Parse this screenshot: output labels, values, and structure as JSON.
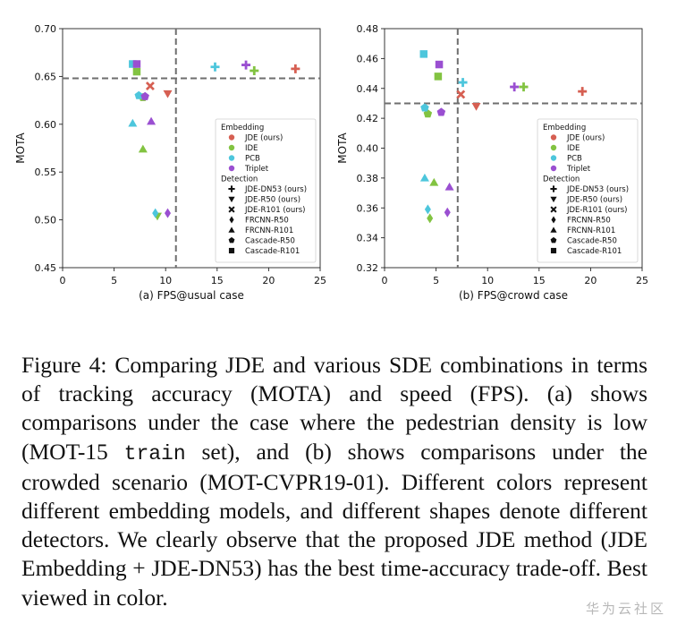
{
  "chart_data": [
    {
      "type": "scatter",
      "title": "",
      "xlabel": "(a) FPS@usual case",
      "ylabel": "MOTA",
      "xlim": [
        0,
        25
      ],
      "ylim": [
        0.45,
        0.7
      ],
      "xticks": [
        "0",
        "5",
        "10",
        "15",
        "20",
        "25"
      ],
      "yticks": [
        "0.45",
        "0.50",
        "0.55",
        "0.60",
        "0.65",
        "0.70"
      ],
      "grid": false,
      "reference_lines": {
        "vertical_x": 11.0,
        "horizontal_y": 0.648
      },
      "legend_placement": "lower-right",
      "points": [
        {
          "embedding": "JDE (ours)",
          "detection": "JDE-DN53 (ours)",
          "x": 22.6,
          "y": 0.658
        },
        {
          "embedding": "JDE (ours)",
          "detection": "JDE-R50 (ours)",
          "x": 10.2,
          "y": 0.632
        },
        {
          "embedding": "JDE (ours)",
          "detection": "JDE-R101 (ours)",
          "x": 8.5,
          "y": 0.64
        },
        {
          "embedding": "IDE",
          "detection": "JDE-DN53 (ours)",
          "x": 18.6,
          "y": 0.656
        },
        {
          "embedding": "IDE",
          "detection": "JDE-R50 (ours)",
          "x": 9.2,
          "y": 0.504
        },
        {
          "embedding": "IDE",
          "detection": "FRCNN-R101",
          "x": 7.8,
          "y": 0.574
        },
        {
          "embedding": "IDE",
          "detection": "Cascade-R50",
          "x": 7.8,
          "y": 0.628
        },
        {
          "embedding": "IDE",
          "detection": "Cascade-R101",
          "x": 7.2,
          "y": 0.655
        },
        {
          "embedding": "PCB",
          "detection": "JDE-DN53 (ours)",
          "x": 14.8,
          "y": 0.66
        },
        {
          "embedding": "PCB",
          "detection": "FRCNN-R50",
          "x": 9.0,
          "y": 0.507
        },
        {
          "embedding": "PCB",
          "detection": "FRCNN-R101",
          "x": 6.8,
          "y": 0.601
        },
        {
          "embedding": "PCB",
          "detection": "Cascade-R50",
          "x": 7.4,
          "y": 0.63
        },
        {
          "embedding": "PCB",
          "detection": "Cascade-R101",
          "x": 6.8,
          "y": 0.663
        },
        {
          "embedding": "Triplet",
          "detection": "JDE-DN53 (ours)",
          "x": 17.8,
          "y": 0.662
        },
        {
          "embedding": "Triplet",
          "detection": "FRCNN-R50",
          "x": 10.2,
          "y": 0.507
        },
        {
          "embedding": "Triplet",
          "detection": "FRCNN-R101",
          "x": 8.6,
          "y": 0.603
        },
        {
          "embedding": "Triplet",
          "detection": "Cascade-R50",
          "x": 8.0,
          "y": 0.629
        },
        {
          "embedding": "Triplet",
          "detection": "Cascade-R101",
          "x": 7.2,
          "y": 0.663
        }
      ]
    },
    {
      "type": "scatter",
      "title": "",
      "xlabel": "(b) FPS@crowd case",
      "ylabel": "MOTA",
      "xlim": [
        0,
        25
      ],
      "ylim": [
        0.32,
        0.48
      ],
      "xticks": [
        "0",
        "5",
        "10",
        "15",
        "20",
        "25"
      ],
      "yticks": [
        "0.32",
        "0.34",
        "0.36",
        "0.38",
        "0.40",
        "0.42",
        "0.44",
        "0.46",
        "0.48"
      ],
      "grid": false,
      "reference_lines": {
        "vertical_x": 7.1,
        "horizontal_y": 0.43
      },
      "legend_placement": "lower-right",
      "points": [
        {
          "embedding": "JDE (ours)",
          "detection": "JDE-DN53 (ours)",
          "x": 19.2,
          "y": 0.438
        },
        {
          "embedding": "JDE (ours)",
          "detection": "JDE-R50 (ours)",
          "x": 8.9,
          "y": 0.428
        },
        {
          "embedding": "JDE (ours)",
          "detection": "JDE-R101 (ours)",
          "x": 7.4,
          "y": 0.436
        },
        {
          "embedding": "IDE",
          "detection": "JDE-DN53 (ours)",
          "x": 13.5,
          "y": 0.441
        },
        {
          "embedding": "IDE",
          "detection": "FRCNN-R50",
          "x": 4.4,
          "y": 0.353
        },
        {
          "embedding": "IDE",
          "detection": "FRCNN-R101",
          "x": 4.8,
          "y": 0.377
        },
        {
          "embedding": "IDE",
          "detection": "Cascade-R50",
          "x": 4.2,
          "y": 0.423
        },
        {
          "embedding": "IDE",
          "detection": "Cascade-R101",
          "x": 5.2,
          "y": 0.448
        },
        {
          "embedding": "PCB",
          "detection": "JDE-DN53 (ours)",
          "x": 7.6,
          "y": 0.444
        },
        {
          "embedding": "PCB",
          "detection": "FRCNN-R50",
          "x": 4.2,
          "y": 0.359
        },
        {
          "embedding": "PCB",
          "detection": "FRCNN-R101",
          "x": 3.9,
          "y": 0.38
        },
        {
          "embedding": "PCB",
          "detection": "Cascade-R50",
          "x": 3.9,
          "y": 0.427
        },
        {
          "embedding": "PCB",
          "detection": "Cascade-R101",
          "x": 3.8,
          "y": 0.463
        },
        {
          "embedding": "Triplet",
          "detection": "JDE-DN53 (ours)",
          "x": 12.6,
          "y": 0.441
        },
        {
          "embedding": "Triplet",
          "detection": "FRCNN-R50",
          "x": 6.1,
          "y": 0.357
        },
        {
          "embedding": "Triplet",
          "detection": "FRCNN-R101",
          "x": 6.3,
          "y": 0.374
        },
        {
          "embedding": "Triplet",
          "detection": "Cascade-R50",
          "x": 5.5,
          "y": 0.424
        },
        {
          "embedding": "Triplet",
          "detection": "Cascade-R101",
          "x": 5.3,
          "y": 0.456
        }
      ]
    }
  ],
  "legend": {
    "embedding_title": "Embedding",
    "embedding": [
      {
        "label": "JDE (ours)",
        "color": "#d65f52"
      },
      {
        "label": "IDE",
        "color": "#82c341"
      },
      {
        "label": "PCB",
        "color": "#4dc6dc"
      },
      {
        "label": "Triplet",
        "color": "#9a4fd1"
      }
    ],
    "detection_title": "Detection",
    "detection": [
      {
        "label": "JDE-DN53 (ours)",
        "marker": "plus"
      },
      {
        "label": "JDE-R50 (ours)",
        "marker": "triangle-down"
      },
      {
        "label": "JDE-R101 (ours)",
        "marker": "x"
      },
      {
        "label": "FRCNN-R50",
        "marker": "diamond"
      },
      {
        "label": "FRCNN-R101",
        "marker": "triangle-up"
      },
      {
        "label": "Cascade-R50",
        "marker": "pentagon"
      },
      {
        "label": "Cascade-R101",
        "marker": "square"
      }
    ]
  },
  "caption": {
    "part1": "Figure 4: Comparing JDE and various SDE combinations in terms of tracking accuracy (MOTA) and speed (FPS). (a) shows comparisons under the case where the pedestrian density is low (MOT-15 ",
    "code": "train",
    "part2": " set), and (b) shows comparisons under the crowded scenario (MOT-CVPR19-01). Different colors represent different embedding models, and different shapes denote different detectors. We clearly observe that the proposed JDE method (JDE Embedding + JDE-DN53) has the best time-accuracy trade-off. Best viewed in color."
  },
  "watermark": "华为云社区"
}
